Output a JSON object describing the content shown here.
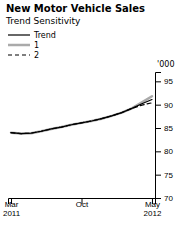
{
  "chart_data": {
    "type": "line",
    "title": "New Motor Vehicle Sales",
    "subtitle": "Trend Sensitivity",
    "ylabel": "'000",
    "categories": [
      "Mar\n2011",
      null,
      null,
      null,
      null,
      null,
      null,
      "Oct",
      null,
      null,
      null,
      null,
      null,
      null,
      "May\n2012"
    ],
    "series": [
      {
        "name": "Trend",
        "color": "#000000",
        "line_style": "solid",
        "values": [
          84.0,
          83.8,
          83.9,
          84.3,
          84.8,
          85.2,
          85.7,
          86.1,
          86.5,
          87.0,
          87.6,
          88.3,
          89.2,
          90.2,
          91.1
        ]
      },
      {
        "name": "1",
        "color": "#aaaaaa",
        "line_style": "solid",
        "values": [
          84.0,
          83.8,
          83.9,
          84.3,
          84.8,
          85.2,
          85.7,
          86.1,
          86.5,
          87.0,
          87.6,
          88.3,
          89.2,
          90.5,
          91.8
        ]
      },
      {
        "name": "2",
        "color": "#000000",
        "line_style": "dashed",
        "values": [
          84.0,
          83.8,
          83.9,
          84.3,
          84.8,
          85.2,
          85.7,
          86.1,
          86.5,
          87.0,
          87.6,
          88.3,
          89.2,
          89.9,
          90.4
        ]
      }
    ],
    "ylim": [
      70,
      97
    ],
    "yticks": [
      70,
      75,
      80,
      85,
      90,
      95
    ],
    "grid": false
  }
}
